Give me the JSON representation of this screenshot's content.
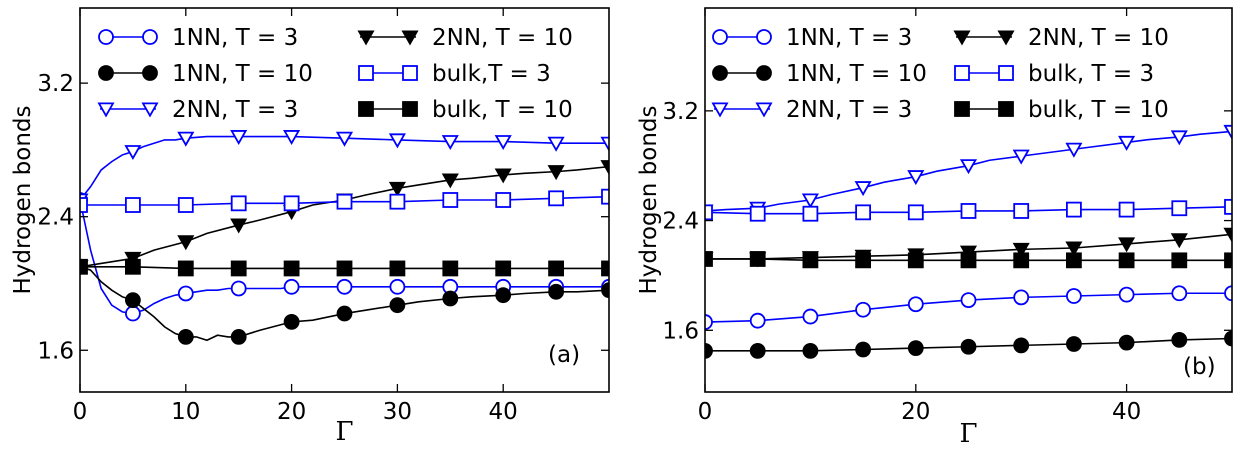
{
  "chart_data": [
    {
      "type": "line",
      "panel_label": "(a)",
      "xlabel": "Γ",
      "ylabel": "Hydrogen bonds",
      "xlim": [
        0,
        50
      ],
      "ylim": [
        1.35,
        3.65
      ],
      "xticks": [
        0,
        10,
        20,
        30,
        40
      ],
      "yticks": [
        1.6,
        2.4,
        3.2
      ],
      "xtick_labels": [
        "0",
        "10",
        "20",
        "30",
        "40"
      ],
      "ytick_labels": [
        "1.6",
        "2.4",
        "3.2"
      ],
      "grid": false,
      "legend_location": "top",
      "series": [
        {
          "name": "1NN, T = 3",
          "color": "#0000ff",
          "marker": "circle-open",
          "x": [
            0,
            1,
            2,
            3,
            4,
            5,
            6,
            7,
            8,
            9,
            10,
            11,
            12,
            13,
            14,
            15,
            16,
            17,
            18,
            19,
            20,
            22,
            24,
            26,
            28,
            30,
            32,
            34,
            36,
            38,
            40,
            42,
            44,
            46,
            48,
            50
          ],
          "y": [
            2.5,
            2.2,
            1.97,
            1.87,
            1.83,
            1.82,
            1.84,
            1.88,
            1.91,
            1.93,
            1.94,
            1.95,
            1.96,
            1.96,
            1.97,
            1.97,
            1.97,
            1.97,
            1.97,
            1.97,
            1.98,
            1.98,
            1.98,
            1.98,
            1.98,
            1.98,
            1.98,
            1.98,
            1.98,
            1.98,
            1.98,
            1.98,
            1.98,
            1.98,
            1.98,
            1.98
          ],
          "marker_x": [
            0,
            5,
            10,
            15,
            20,
            25,
            30,
            35,
            40,
            45,
            50
          ]
        },
        {
          "name": "1NN, T = 10",
          "color": "#000000",
          "marker": "circle-filled",
          "x": [
            0,
            1,
            2,
            3,
            4,
            5,
            6,
            7,
            8,
            9,
            10,
            11,
            12,
            13,
            14,
            15,
            17,
            20,
            22,
            25,
            27,
            30,
            32,
            35,
            37,
            40,
            42,
            45,
            47,
            50
          ],
          "y": [
            2.1,
            2.08,
            2.01,
            1.96,
            1.92,
            1.9,
            1.85,
            1.8,
            1.74,
            1.7,
            1.68,
            1.68,
            1.66,
            1.69,
            1.68,
            1.68,
            1.72,
            1.77,
            1.78,
            1.82,
            1.84,
            1.87,
            1.89,
            1.91,
            1.92,
            1.93,
            1.94,
            1.95,
            1.95,
            1.96
          ],
          "marker_x": [
            0,
            5,
            10,
            15,
            20,
            25,
            30,
            35,
            40,
            45,
            50
          ]
        },
        {
          "name": "2NN, T = 3",
          "color": "#0000ff",
          "marker": "triangle-down-open",
          "x": [
            0,
            1,
            2,
            3,
            4,
            5,
            6,
            7,
            8,
            9,
            10,
            12,
            15,
            20,
            25,
            30,
            35,
            40,
            45,
            50
          ],
          "y": [
            2.5,
            2.58,
            2.68,
            2.73,
            2.77,
            2.79,
            2.82,
            2.84,
            2.86,
            2.86,
            2.87,
            2.88,
            2.88,
            2.88,
            2.87,
            2.86,
            2.85,
            2.85,
            2.84,
            2.84
          ],
          "marker_x": [
            0,
            5,
            10,
            15,
            20,
            25,
            30,
            35,
            40,
            45,
            50
          ]
        },
        {
          "name": "2NN, T = 10",
          "color": "#000000",
          "marker": "triangle-down-filled",
          "x": [
            0,
            2,
            5,
            7,
            10,
            12,
            15,
            17,
            20,
            22,
            25,
            27,
            30,
            32,
            35,
            37,
            40,
            42,
            45,
            47,
            50
          ],
          "y": [
            2.1,
            2.12,
            2.15,
            2.2,
            2.25,
            2.3,
            2.35,
            2.38,
            2.43,
            2.47,
            2.5,
            2.53,
            2.57,
            2.59,
            2.62,
            2.63,
            2.65,
            2.66,
            2.67,
            2.68,
            2.7
          ],
          "marker_x": [
            0,
            5,
            10,
            15,
            20,
            25,
            30,
            35,
            40,
            45,
            50
          ]
        },
        {
          "name": "bulk,T = 3",
          "color": "#0000ff",
          "marker": "square-open",
          "x": [
            0,
            5,
            10,
            15,
            20,
            25,
            30,
            35,
            40,
            45,
            50
          ],
          "y": [
            2.47,
            2.47,
            2.47,
            2.48,
            2.48,
            2.49,
            2.49,
            2.5,
            2.5,
            2.51,
            2.52
          ],
          "marker_x": [
            0,
            5,
            10,
            15,
            20,
            25,
            30,
            35,
            40,
            45,
            50
          ]
        },
        {
          "name": "bulk, T = 10",
          "color": "#000000",
          "marker": "square-filled",
          "x": [
            0,
            5,
            10,
            15,
            20,
            25,
            30,
            35,
            40,
            45,
            50
          ],
          "y": [
            2.1,
            2.1,
            2.09,
            2.09,
            2.09,
            2.09,
            2.09,
            2.09,
            2.09,
            2.09,
            2.09
          ],
          "marker_x": [
            0,
            5,
            10,
            15,
            20,
            25,
            30,
            35,
            40,
            45,
            50
          ]
        }
      ]
    },
    {
      "type": "line",
      "panel_label": "(b)",
      "xlabel": "Γ",
      "ylabel": "Hydrogen bonds",
      "xlim": [
        0,
        50
      ],
      "ylim": [
        1.15,
        3.95
      ],
      "xticks": [
        0,
        20,
        40
      ],
      "yticks": [
        1.6,
        2.4,
        3.2
      ],
      "xtick_labels": [
        "0",
        "20",
        "40"
      ],
      "ytick_labels": [
        "1.6",
        "2.4",
        "3.2"
      ],
      "grid": false,
      "legend_location": "top",
      "series": [
        {
          "name": "1NN, T = 3",
          "color": "#0000ff",
          "marker": "circle-open",
          "x": [
            0,
            5,
            10,
            15,
            20,
            25,
            30,
            35,
            40,
            45,
            50
          ],
          "y": [
            1.66,
            1.67,
            1.7,
            1.75,
            1.79,
            1.82,
            1.84,
            1.85,
            1.86,
            1.87,
            1.87
          ],
          "marker_x": [
            0,
            5,
            10,
            15,
            20,
            25,
            30,
            35,
            40,
            45,
            50
          ]
        },
        {
          "name": "1NN, T = 10",
          "color": "#000000",
          "marker": "circle-filled",
          "x": [
            0,
            5,
            10,
            15,
            20,
            25,
            30,
            35,
            40,
            45,
            50
          ],
          "y": [
            1.45,
            1.45,
            1.45,
            1.46,
            1.47,
            1.48,
            1.49,
            1.5,
            1.51,
            1.53,
            1.54
          ],
          "marker_x": [
            0,
            5,
            10,
            15,
            20,
            25,
            30,
            35,
            40,
            45,
            50
          ]
        },
        {
          "name": "2NN, T = 3",
          "color": "#0000ff",
          "marker": "triangle-down-open",
          "x": [
            0,
            2,
            5,
            7,
            10,
            12,
            15,
            17,
            20,
            22,
            25,
            27,
            30,
            32,
            35,
            37,
            40,
            42,
            45,
            47,
            50
          ],
          "y": [
            2.47,
            2.48,
            2.49,
            2.52,
            2.55,
            2.59,
            2.64,
            2.68,
            2.72,
            2.76,
            2.8,
            2.84,
            2.87,
            2.89,
            2.92,
            2.94,
            2.97,
            2.99,
            3.01,
            3.03,
            3.05
          ],
          "marker_x": [
            0,
            5,
            10,
            15,
            20,
            25,
            30,
            35,
            40,
            45,
            50
          ]
        },
        {
          "name": "2NN, T = 10",
          "color": "#000000",
          "marker": "triangle-down-filled",
          "x": [
            0,
            5,
            10,
            15,
            20,
            25,
            30,
            35,
            40,
            45,
            50
          ],
          "y": [
            2.12,
            2.12,
            2.13,
            2.14,
            2.15,
            2.17,
            2.19,
            2.2,
            2.23,
            2.26,
            2.3
          ],
          "marker_x": [
            0,
            5,
            10,
            15,
            20,
            25,
            30,
            35,
            40,
            45,
            50
          ]
        },
        {
          "name": "bulk, T = 3",
          "color": "#0000ff",
          "marker": "square-open",
          "x": [
            0,
            5,
            10,
            15,
            20,
            25,
            30,
            35,
            40,
            45,
            50
          ],
          "y": [
            2.46,
            2.45,
            2.45,
            2.46,
            2.46,
            2.47,
            2.47,
            2.48,
            2.48,
            2.49,
            2.5
          ],
          "marker_x": [
            0,
            5,
            10,
            15,
            20,
            25,
            30,
            35,
            40,
            45,
            50
          ]
        },
        {
          "name": "bulk, T = 10",
          "color": "#000000",
          "marker": "square-filled",
          "x": [
            0,
            5,
            10,
            15,
            20,
            25,
            30,
            35,
            40,
            45,
            50
          ],
          "y": [
            2.12,
            2.12,
            2.11,
            2.11,
            2.11,
            2.11,
            2.11,
            2.11,
            2.11,
            2.11,
            2.11
          ],
          "marker_x": [
            0,
            5,
            10,
            15,
            20,
            25,
            30,
            35,
            40,
            45,
            50
          ]
        }
      ]
    }
  ]
}
